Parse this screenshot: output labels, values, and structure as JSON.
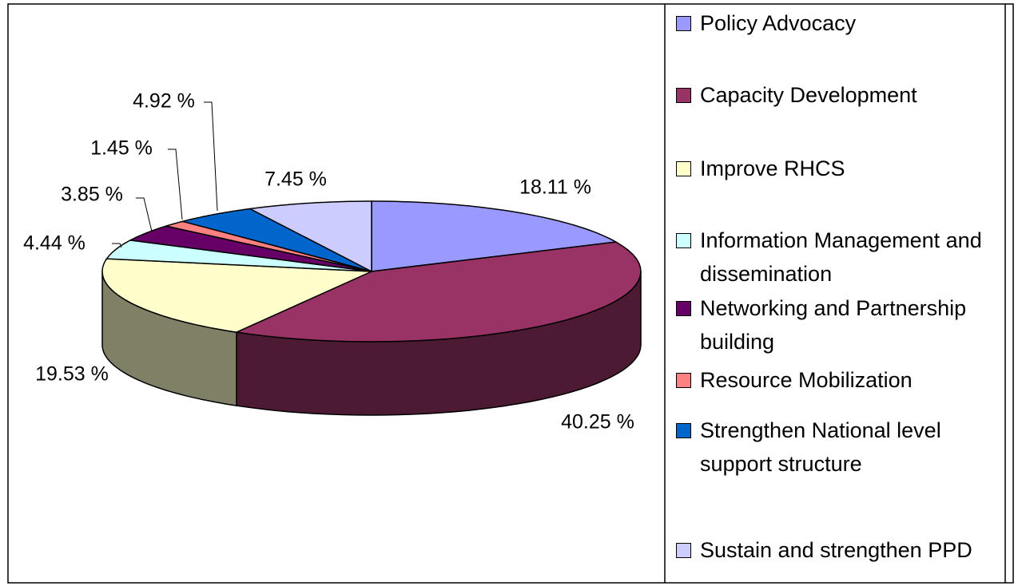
{
  "chart_data": {
    "type": "pie3d",
    "categories": [
      "Policy Advocacy",
      "Capacity Development",
      "Improve RHCS",
      "Information Management and dissemination",
      "Networking and Partnership building",
      "Resource Mobilization",
      "Strengthen National level support structure",
      "Sustain and strengthen PPD"
    ],
    "values": [
      18.11,
      40.25,
      19.53,
      4.44,
      3.85,
      1.45,
      4.92,
      7.45
    ],
    "value_labels": [
      "18.11 %",
      "40.25 %",
      "19.53 %",
      "4.44 %",
      "3.85 %",
      "1.45 %",
      "4.92 %",
      "7.45 %"
    ],
    "colors": [
      "#9999ff",
      "#993366",
      "#ffffcc",
      "#ccffff",
      "#660066",
      "#ff8080",
      "#0066cc",
      "#ccccff"
    ],
    "legend": "right"
  }
}
